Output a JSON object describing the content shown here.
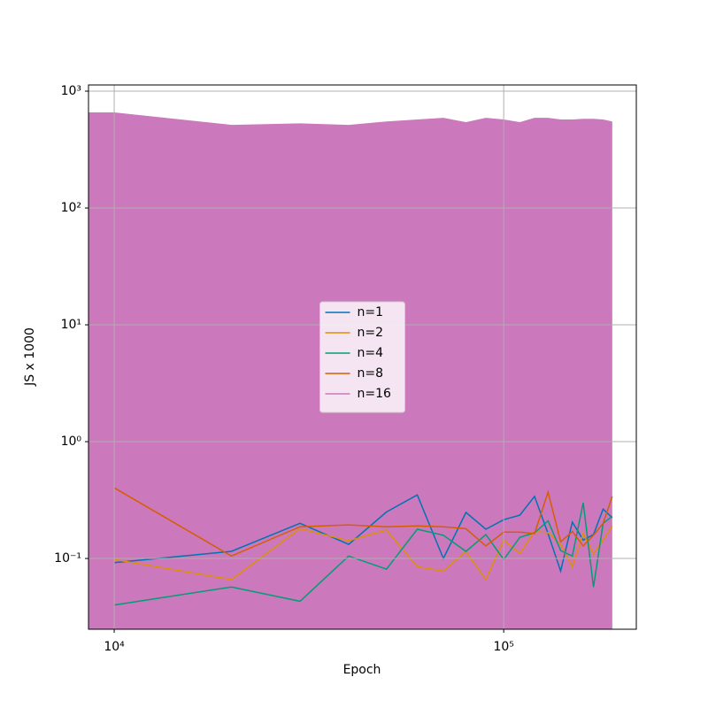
{
  "chart_data": {
    "type": "line",
    "x_label": "Epoch",
    "y_label": "JS x 1000",
    "x": [
      10000,
      20000,
      30000,
      40000,
      50000,
      60000,
      70000,
      80000,
      90000,
      100000,
      110000,
      120000,
      130000,
      140000,
      150000,
      160000,
      170000,
      180000,
      190000
    ],
    "series": [
      {
        "name": "n=1",
        "color": "#0173b2",
        "values": [
          0.092,
          0.115,
          0.2,
          0.132,
          0.25,
          0.35,
          0.1,
          0.248,
          0.178,
          0.215,
          0.235,
          0.34,
          0.163,
          0.078,
          0.205,
          0.144,
          0.16,
          0.265,
          0.223
        ]
      },
      {
        "name": "n=2",
        "color": "#de8f05",
        "values": [
          0.098,
          0.066,
          0.18,
          0.142,
          0.175,
          0.085,
          0.078,
          0.115,
          0.066,
          0.144,
          0.11,
          0.17,
          0.166,
          0.132,
          0.085,
          0.163,
          0.11,
          0.144,
          0.19
        ]
      },
      {
        "name": "n=4",
        "color": "#029e73",
        "values": [
          0.04,
          0.057,
          0.043,
          0.105,
          0.081,
          0.178,
          0.158,
          0.115,
          0.16,
          0.098,
          0.152,
          0.166,
          0.21,
          0.117,
          0.105,
          0.3,
          0.057,
          0.2,
          0.23
        ]
      },
      {
        "name": "n=8",
        "color": "#d55e00",
        "values": [
          0.403,
          0.105,
          0.187,
          0.194,
          0.187,
          0.19,
          0.187,
          0.18,
          0.128,
          0.168,
          0.168,
          0.163,
          0.37,
          0.139,
          0.17,
          0.128,
          0.158,
          0.2,
          0.34
        ]
      },
      {
        "name": "n=16",
        "color": "#cc78bc",
        "fill": true,
        "values": [
          658,
          515,
          530,
          515,
          550,
          572,
          592,
          543,
          592,
          572,
          543,
          592,
          592,
          572,
          572,
          580,
          580,
          572,
          550
        ]
      }
    ],
    "xlim": [
      8590,
      219000
    ],
    "ylim": [
      0.0248,
      1130
    ],
    "x_scale": "log",
    "y_scale": "log",
    "xticks": [
      {
        "value": 10000,
        "label": "10⁴"
      },
      {
        "value": 100000,
        "label": "10⁵"
      }
    ],
    "yticks": [
      {
        "value": 0.1,
        "label": "10⁻¹"
      },
      {
        "value": 1,
        "label": "10⁰"
      },
      {
        "value": 10,
        "label": "10¹"
      },
      {
        "value": 100,
        "label": "10²"
      },
      {
        "value": 1000,
        "label": "10³"
      }
    ],
    "grid": true,
    "legend": "center"
  }
}
